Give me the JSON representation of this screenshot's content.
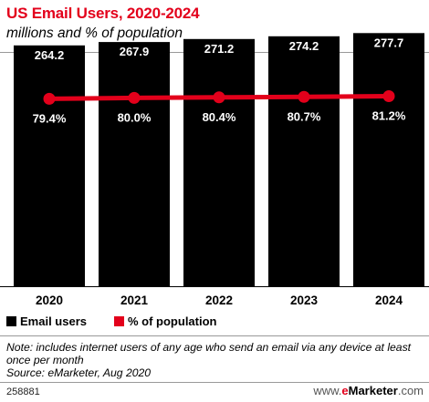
{
  "header": {
    "title": "US Email Users, 2020-2024",
    "subtitle": "millions and % of population"
  },
  "chart_data": {
    "type": "bar",
    "categories": [
      "2020",
      "2021",
      "2022",
      "2023",
      "2024"
    ],
    "series": [
      {
        "name": "Email users",
        "type": "bar",
        "values": [
          264.2,
          267.9,
          271.2,
          274.2,
          277.7
        ],
        "labels": [
          "264.2",
          "267.9",
          "271.2",
          "274.2",
          "277.7"
        ],
        "color": "#000000"
      },
      {
        "name": "% of population",
        "type": "line",
        "values": [
          79.4,
          80.0,
          80.4,
          80.7,
          81.2
        ],
        "labels": [
          "79.4%",
          "80.0%",
          "80.4%",
          "80.7%",
          "81.2%"
        ],
        "color": "#e3001b"
      }
    ],
    "ylim": [
      0,
      300
    ],
    "ylim_secondary": [
      0,
      100
    ],
    "grid": false,
    "legend_position": "bottom-left"
  },
  "legend": {
    "items": [
      {
        "label": "Email users",
        "color": "#000000"
      },
      {
        "label": "% of population",
        "color": "#e3001b"
      }
    ]
  },
  "note": {
    "text": "Note: includes internet users of any age who send an email via any device at least once per month",
    "source": "Source: eMarketer, Aug 2020"
  },
  "footer": {
    "chart_id": "258881",
    "site_prefix": "www.",
    "site_e": "e",
    "site_brand": "Marketer",
    "site_suffix": ".com"
  }
}
